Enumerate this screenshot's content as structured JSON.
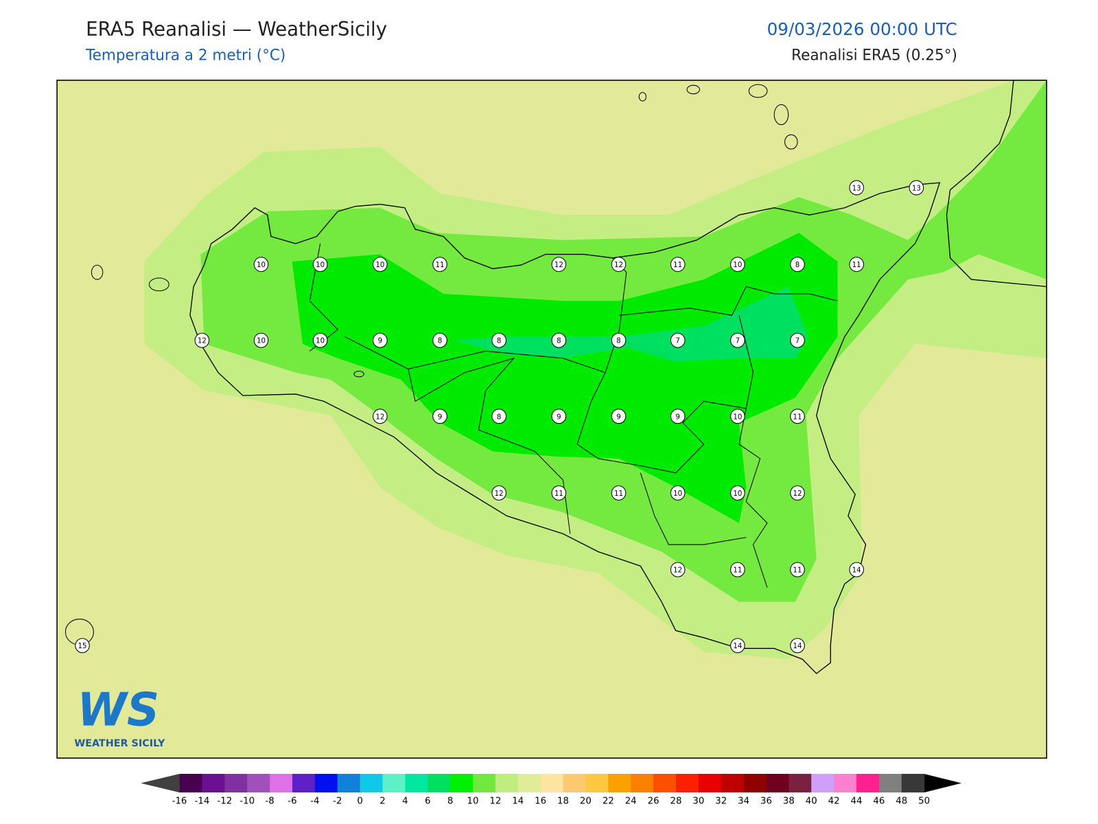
{
  "header": {
    "title": "ERA5 Reanalisi — WeatherSicily",
    "subtitle": "Temperatura a 2 metri (°C)",
    "date": "09/03/2026 00:00 UTC",
    "source": "Reanalisi ERA5 (0.25°)"
  },
  "logo": {
    "mark": "WS",
    "name": "WEATHER SICILY"
  },
  "stations": [
    13,
    13,
    10,
    10,
    10,
    11,
    12,
    12,
    11,
    10,
    8,
    11,
    12,
    10,
    10,
    9,
    8,
    8,
    8,
    8,
    7,
    7,
    7,
    12,
    9,
    8,
    9,
    9,
    9,
    10,
    11,
    12,
    11,
    11,
    10,
    10,
    12,
    12,
    11,
    11,
    14,
    15,
    14,
    14
  ],
  "colorbar": {
    "ticks": [
      -16,
      -14,
      -12,
      -10,
      -8,
      -6,
      -4,
      -2,
      0,
      2,
      4,
      6,
      8,
      10,
      12,
      14,
      16,
      18,
      20,
      22,
      24,
      26,
      28,
      30,
      32,
      34,
      36,
      38,
      40,
      42,
      44,
      46,
      48,
      50
    ],
    "colors": [
      "#4a0050",
      "#6a1090",
      "#8030a0",
      "#a050b8",
      "#e070e8",
      "#6020c8",
      "#0010f0",
      "#1080d8",
      "#10c8e8",
      "#60f0c8",
      "#00e8a0",
      "#00e060",
      "#00f000",
      "#70e840",
      "#c0ec80",
      "#e0ec98",
      "#fde4a0",
      "#fcc870",
      "#fcc840",
      "#fca000",
      "#fc8000",
      "#fc5000",
      "#fc2000",
      "#e80000",
      "#c00000",
      "#900000",
      "#700020",
      "#7a2040",
      "#d0a0f8",
      "#fc80d0",
      "#fc2090",
      "#808080",
      "#383838"
    ],
    "under": "#404040",
    "over": "#000000"
  }
}
